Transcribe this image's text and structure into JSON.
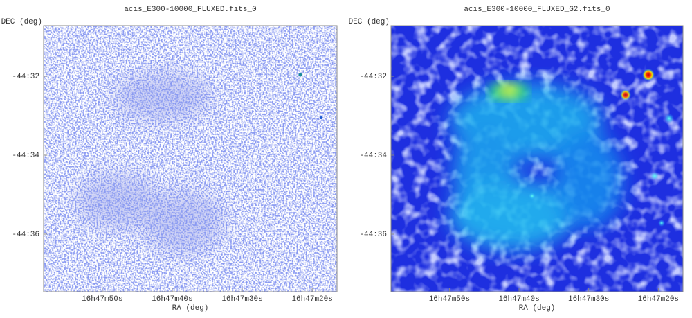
{
  "panels": [
    {
      "title": "acis_E300-10000_FLUXED.fits_0",
      "y_axis_label": "DEC (deg)",
      "x_axis_label": "RA (deg)",
      "y_ticks": [
        "-44:32",
        "-44:34",
        "-44:36"
      ],
      "x_ticks": [
        "16h47m50s",
        "16h47m40s",
        "16h47m30s",
        "16h47m20s"
      ]
    },
    {
      "title": "acis_E300-10000_FLUXED_G2.fits_0",
      "y_axis_label": "DEC (deg)",
      "x_axis_label": "RA (deg)",
      "y_ticks": [
        "-44:32",
        "-44:34",
        "-44:36"
      ],
      "x_ticks": [
        "16h47m50s",
        "16h47m40s",
        "16h47m30s",
        "16h47m20s"
      ]
    }
  ]
}
